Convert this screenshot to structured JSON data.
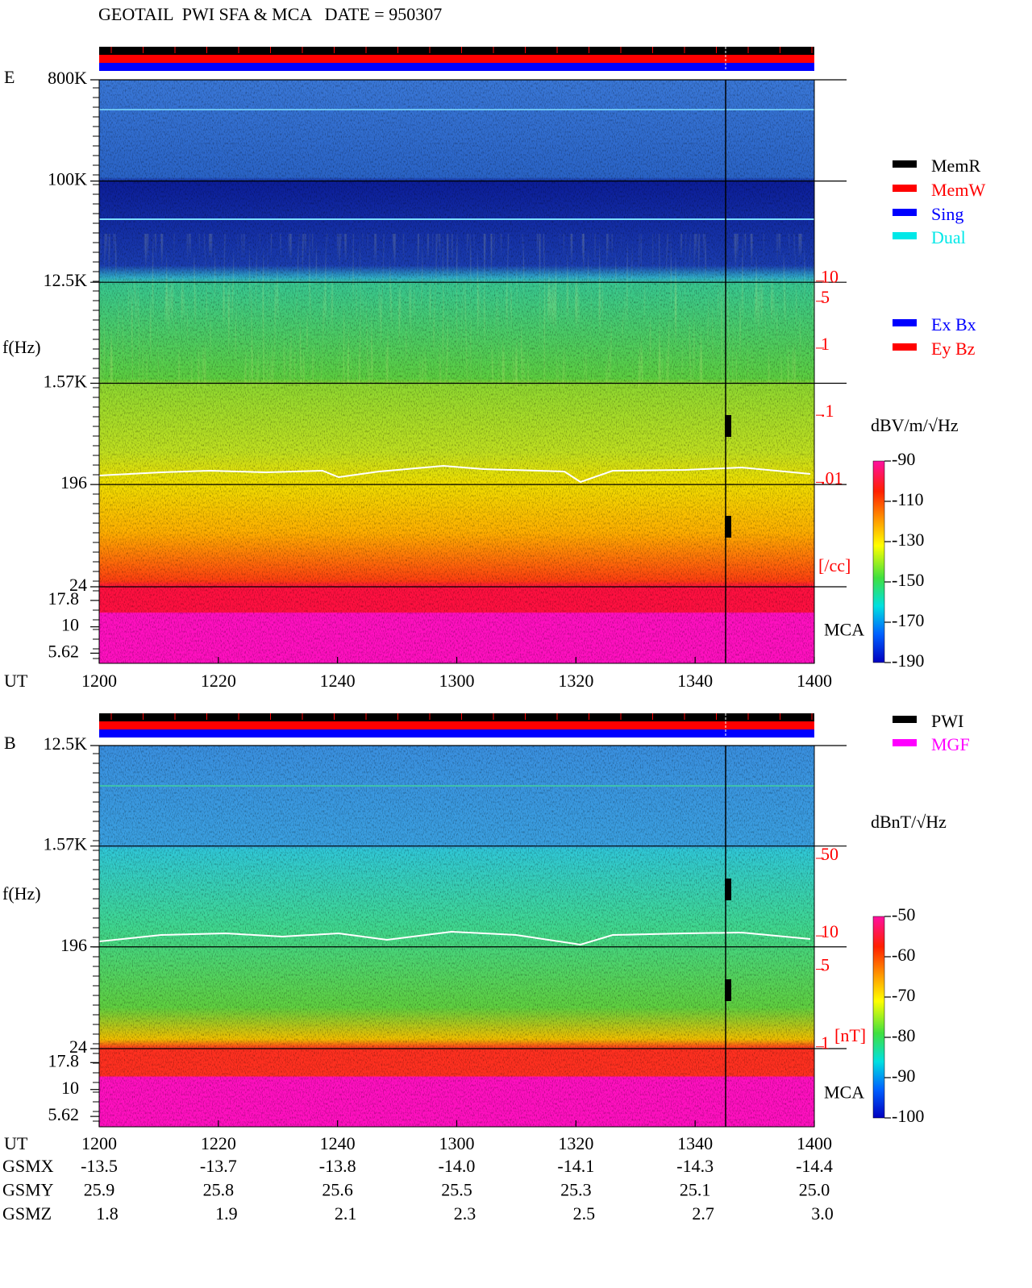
{
  "header": {
    "title": "GEOTAIL  PWI SFA & MCA   DATE = 950307"
  },
  "chart_data": [
    {
      "type": "spectrogram",
      "panel": "E",
      "y_label": "f(Hz)",
      "x_label": "UT",
      "log_scale": true,
      "ylim": [
        24,
        800000
      ],
      "yticks": [
        {
          "value": 800000,
          "label": "800K"
        },
        {
          "value": 100000,
          "label": "100K"
        },
        {
          "value": 12500,
          "label": "12.5K"
        },
        {
          "value": 1570,
          "label": "1.57K"
        },
        196,
        24
      ],
      "mca_label": "MCA",
      "mca_ylim": [
        4.5,
        24
      ],
      "mca_yticks": [
        17.8,
        10,
        5.62
      ],
      "y2lim": [
        2e-05,
        10000
      ],
      "y2ticks": [
        10,
        5,
        1,
        {
          "value": 0.1,
          "label": ".1"
        },
        {
          "value": 0.01,
          "label": ".01"
        }
      ],
      "y2_unit": "[/cc]",
      "y2_color": "#ff0000",
      "xticks": [
        "1200",
        "1220",
        "1240",
        "1300",
        "1320",
        "1340",
        "1400"
      ],
      "colorbar": {
        "label": "dBV/m/√Hz",
        "lim": [
          -190,
          -90
        ],
        "ticks": [
          -90,
          -110,
          -130,
          -150,
          -170,
          -190
        ]
      },
      "legend": [
        {
          "name": "MemR",
          "color": "#000000"
        },
        {
          "name": "MemW",
          "color": "#ff0000"
        },
        {
          "name": "Sing",
          "color": "#0000ff"
        },
        {
          "name": "Dual",
          "color": "#00e8e8"
        }
      ],
      "legend2": [
        {
          "name": "Ex Bx",
          "color": "#0000ff"
        },
        {
          "name": "Ey Bz",
          "color": "#ff0000"
        }
      ]
    },
    {
      "type": "spectrogram",
      "panel": "B",
      "y_label": "f(Hz)",
      "x_label": "UT",
      "log_scale": true,
      "ylim": [
        24,
        12500
      ],
      "yticks": [
        {
          "value": 12500,
          "label": "12.5K"
        },
        {
          "value": 1570,
          "label": "1.57K"
        },
        196,
        24
      ],
      "mca_label": "MCA",
      "mca_ylim": [
        4.5,
        24
      ],
      "mca_yticks": [
        17.8,
        10,
        5.62
      ],
      "y2lim": [
        0.19,
        520
      ],
      "y2ticks": [
        50,
        10,
        5,
        1
      ],
      "y2_unit": "[nT]",
      "y2_color": "#ff0000",
      "xticks": [
        "1200",
        "1220",
        "1240",
        "1300",
        "1320",
        "1340",
        "1400"
      ],
      "colorbar": {
        "label": "dBnT/√Hz",
        "lim": [
          -100,
          -50
        ],
        "ticks": [
          -50,
          -60,
          -70,
          -80,
          -90,
          -100
        ]
      },
      "legend": [
        {
          "name": "PWI",
          "color": "#000000"
        },
        {
          "name": "MGF",
          "color": "#ff00ff"
        }
      ]
    }
  ],
  "orbit": {
    "rows": [
      {
        "label": "GSMX",
        "values": [
          "-13.5",
          "-13.7",
          "-13.8",
          "-14.0",
          "-14.1",
          "-14.3",
          "-14.4"
        ]
      },
      {
        "label": "GSMY",
        "values": [
          "25.9",
          "25.8",
          "25.6",
          "25.5",
          "25.3",
          "25.1",
          "25.0"
        ]
      },
      {
        "label": "GSMZ",
        "values": [
          "1.8",
          "1.9",
          "2.1",
          "2.3",
          "2.5",
          "2.7",
          "3.0"
        ]
      }
    ]
  }
}
